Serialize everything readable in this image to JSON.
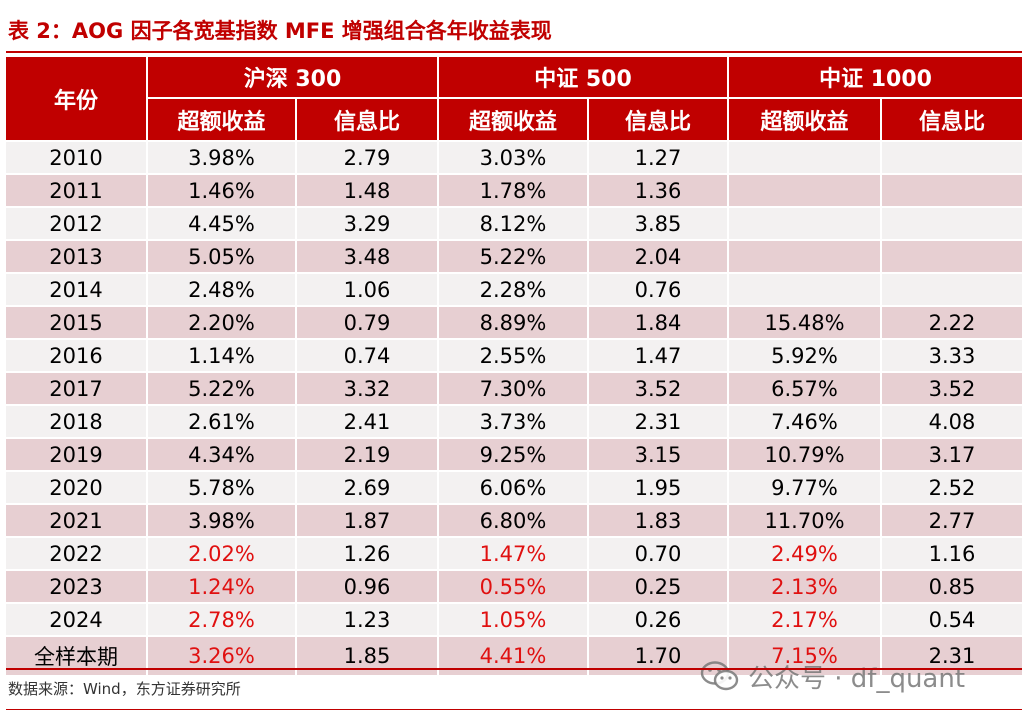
{
  "title": "表 2：AOG 因子各宽基指数 MFE 增强组合各年收益表现",
  "header": {
    "year_label": "年份",
    "groups": [
      "沪深 300",
      "中证 500",
      "中证 1000"
    ],
    "sub": [
      "超额收益",
      "信息比",
      "超额收益",
      "信息比",
      "超额收益",
      "信息比"
    ]
  },
  "rows": [
    {
      "year": "2010",
      "cells": [
        "3.98%",
        "2.79",
        "3.03%",
        "1.27",
        "",
        ""
      ]
    },
    {
      "year": "2011",
      "cells": [
        "1.46%",
        "1.48",
        "1.78%",
        "1.36",
        "",
        ""
      ]
    },
    {
      "year": "2012",
      "cells": [
        "4.45%",
        "3.29",
        "8.12%",
        "3.85",
        "",
        ""
      ]
    },
    {
      "year": "2013",
      "cells": [
        "5.05%",
        "3.48",
        "5.22%",
        "2.04",
        "",
        ""
      ]
    },
    {
      "year": "2014",
      "cells": [
        "2.48%",
        "1.06",
        "2.28%",
        "0.76",
        "",
        ""
      ]
    },
    {
      "year": "2015",
      "cells": [
        "2.20%",
        "0.79",
        "8.89%",
        "1.84",
        "15.48%",
        "2.22"
      ]
    },
    {
      "year": "2016",
      "cells": [
        "1.14%",
        "0.74",
        "2.55%",
        "1.47",
        "5.92%",
        "3.33"
      ]
    },
    {
      "year": "2017",
      "cells": [
        "5.22%",
        "3.32",
        "7.30%",
        "3.52",
        "6.57%",
        "3.52"
      ]
    },
    {
      "year": "2018",
      "cells": [
        "2.61%",
        "2.41",
        "3.73%",
        "2.31",
        "7.46%",
        "4.08"
      ]
    },
    {
      "year": "2019",
      "cells": [
        "4.34%",
        "2.19",
        "9.25%",
        "3.15",
        "10.79%",
        "3.17"
      ]
    },
    {
      "year": "2020",
      "cells": [
        "5.78%",
        "2.69",
        "6.06%",
        "1.95",
        "9.77%",
        "2.52"
      ]
    },
    {
      "year": "2021",
      "cells": [
        "3.98%",
        "1.87",
        "6.80%",
        "1.83",
        "11.70%",
        "2.77"
      ]
    },
    {
      "year": "2022",
      "cells": [
        "2.02%",
        "1.26",
        "1.47%",
        "0.70",
        "2.49%",
        "1.16"
      ]
    },
    {
      "year": "2023",
      "cells": [
        "1.24%",
        "0.96",
        "0.55%",
        "0.25",
        "2.13%",
        "0.85"
      ]
    },
    {
      "year": "2024",
      "cells": [
        "2.78%",
        "1.23",
        "1.05%",
        "0.26",
        "2.17%",
        "0.54"
      ]
    }
  ],
  "total": {
    "year": "全样本期",
    "cells": [
      "3.26%",
      "1.85",
      "4.41%",
      "1.70",
      "7.15%",
      "2.31"
    ]
  },
  "source": "数据来源：Wind，东方证券研究所",
  "watermark": "公众号 · df_quant",
  "colors": {
    "accent": "#c00000",
    "highlight_text": "#e01010",
    "row_light": "#f3f1f1",
    "row_dark": "#e7cfd2"
  }
}
